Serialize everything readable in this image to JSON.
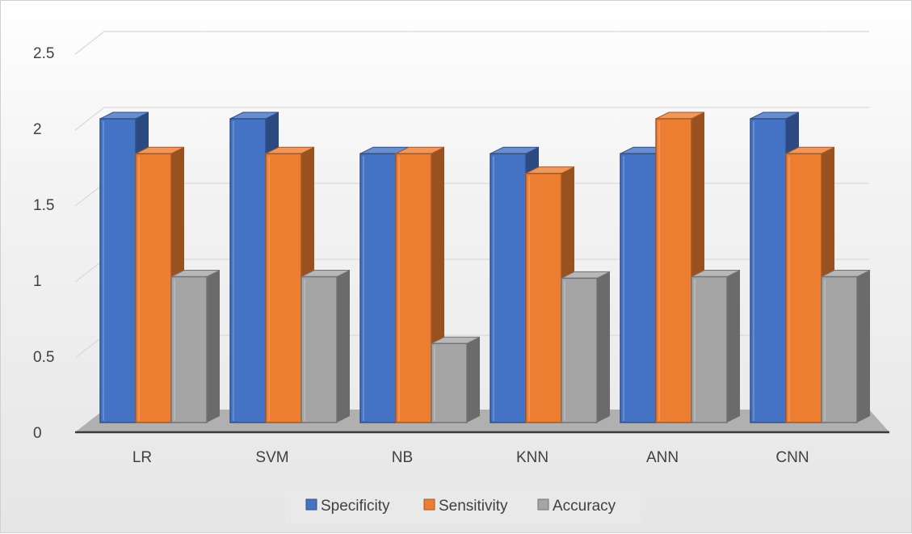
{
  "chart_data": {
    "type": "bar",
    "style": "3d-clustered-column",
    "categories": [
      "LR",
      "SVM",
      "NB",
      "KNN",
      "ANN",
      "CNN"
    ],
    "series": [
      {
        "name": "Specificity",
        "values": [
          2.0,
          2.0,
          1.77,
          1.77,
          1.77,
          2.0
        ],
        "color": "#4472C4"
      },
      {
        "name": "Sensitivity",
        "values": [
          1.77,
          1.77,
          1.77,
          1.64,
          2.0,
          1.77
        ],
        "color": "#ED7D31"
      },
      {
        "name": "Accuracy",
        "values": [
          0.96,
          0.96,
          0.52,
          0.95,
          0.96,
          0.96
        ],
        "color": "#A5A5A5"
      }
    ],
    "ylim": [
      0,
      2.5
    ],
    "yticks": [
      "0",
      "0.5",
      "1",
      "1.5",
      "2",
      "2.5"
    ],
    "grid": true,
    "legend": "bottom"
  }
}
